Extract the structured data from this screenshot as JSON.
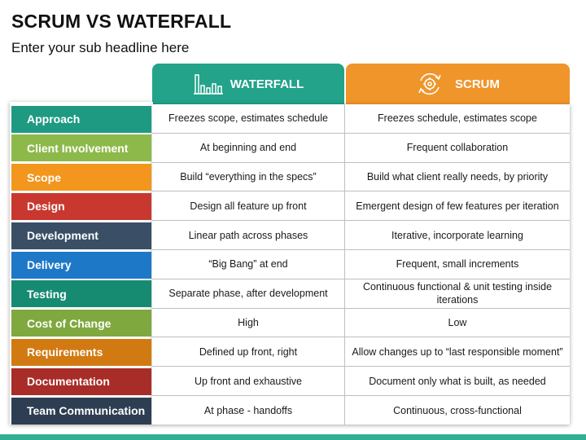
{
  "title": "SCRUM VS WATERFALL",
  "subtitle": "Enter your sub headline here",
  "columns": {
    "waterfall": {
      "label": "WATERFALL",
      "color": "#22a38a",
      "icon": "bar-chart-icon"
    },
    "scrum": {
      "label": "SCRUM",
      "color": "#f0952a",
      "icon": "cycle-gear-icon"
    }
  },
  "rows": [
    {
      "label": "Approach",
      "color": "#1f9a82",
      "waterfall": "Freezes scope, estimates schedule",
      "scrum": "Freezes schedule, estimates scope"
    },
    {
      "label": "Client Involvement",
      "color": "#8db94a",
      "waterfall": "At beginning and end",
      "scrum": "Frequent collaboration"
    },
    {
      "label": "Scope",
      "color": "#f2961e",
      "waterfall": "Build “everything in the specs”",
      "scrum": "Build what client really needs, by priority"
    },
    {
      "label": "Design",
      "color": "#c8382f",
      "waterfall": "Design all feature up front",
      "scrum": "Emergent design of few features per iteration"
    },
    {
      "label": "Development",
      "color": "#3a4f66",
      "waterfall": "Linear path across phases",
      "scrum": "Iterative, incorporate learning"
    },
    {
      "label": "Delivery",
      "color": "#1e78c8",
      "waterfall": "“Big Bang” at end",
      "scrum": "Frequent, small increments"
    },
    {
      "label": "Testing",
      "color": "#178a72",
      "waterfall": "Separate phase, after development",
      "scrum": "Continuous functional & unit testing inside iterations"
    },
    {
      "label": "Cost of Change",
      "color": "#7fa83f",
      "waterfall": "High",
      "scrum": "Low"
    },
    {
      "label": "Requirements",
      "color": "#d27a12",
      "waterfall": "Defined up front, right",
      "scrum": "Allow changes up to “last responsible moment”"
    },
    {
      "label": "Documentation",
      "color": "#a82c27",
      "waterfall": "Up front and exhaustive",
      "scrum": "Document only what is built, as needed"
    },
    {
      "label": "Team Communication",
      "color": "#2d3e52",
      "waterfall": "At phase - handoffs",
      "scrum": "Continuous, cross-functional"
    }
  ]
}
